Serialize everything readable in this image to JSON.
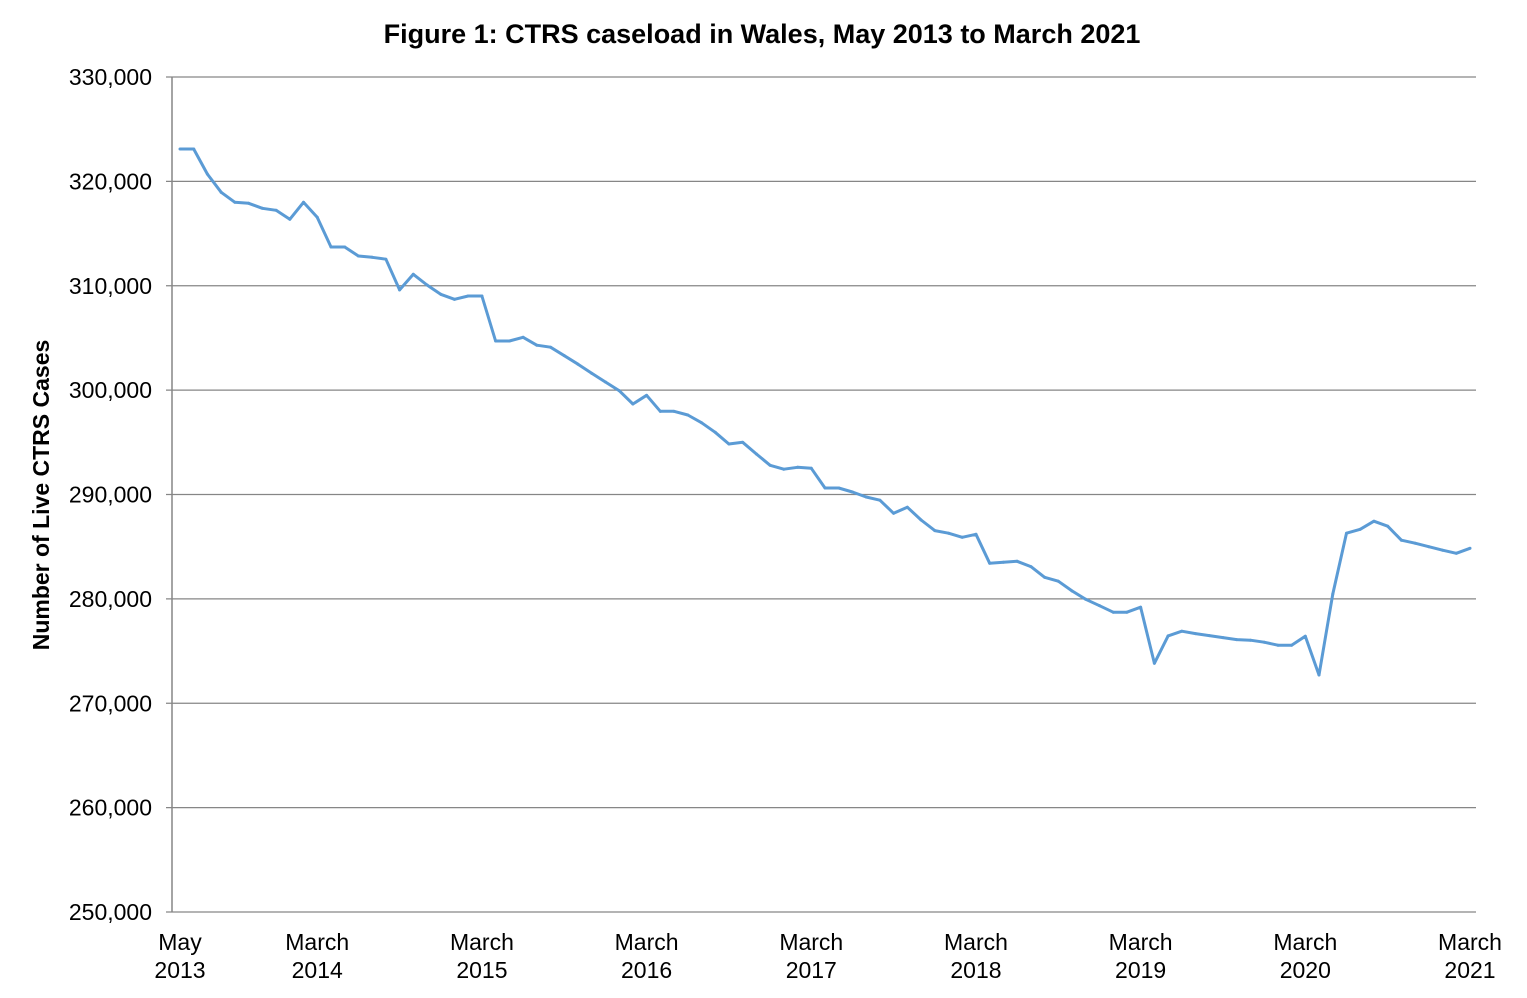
{
  "chart_data": {
    "type": "line",
    "title": "Figure 1: CTRS caseload in Wales, May 2013 to March 2021",
    "xlabel": "",
    "ylabel": "Number of Live CTRS Cases",
    "ylim": [
      250000,
      330000
    ],
    "y_ticks": [
      "250,000",
      "260,000",
      "270,000",
      "280,000",
      "290,000",
      "300,000",
      "310,000",
      "320,000",
      "330,000"
    ],
    "y_tick_values": [
      250000,
      260000,
      270000,
      280000,
      290000,
      300000,
      310000,
      320000,
      330000
    ],
    "x_tick_labels": [
      {
        "index": 0,
        "line1": "May",
        "line2": "2013"
      },
      {
        "index": 10,
        "line1": "March",
        "line2": "2014"
      },
      {
        "index": 22,
        "line1": "March",
        "line2": "2015"
      },
      {
        "index": 34,
        "line1": "March",
        "line2": "2016"
      },
      {
        "index": 46,
        "line1": "March",
        "line2": "2017"
      },
      {
        "index": 58,
        "line1": "March",
        "line2": "2018"
      },
      {
        "index": 70,
        "line1": "March",
        "line2": "2019"
      },
      {
        "index": 82,
        "line1": "March",
        "line2": "2020"
      },
      {
        "index": 94,
        "line1": "March",
        "line2": "2021"
      }
    ],
    "grid": true,
    "legend": "none",
    "series_color": "#5B9BD5",
    "series": [
      {
        "name": "Number of Live CTRS Cases",
        "values": [
          323100,
          323100,
          320700,
          318950,
          318000,
          317900,
          317420,
          317230,
          316370,
          318000,
          316560,
          313710,
          313710,
          312850,
          312730,
          312540,
          309600,
          311100,
          310070,
          309180,
          308700,
          309020,
          309020,
          304710,
          304710,
          305060,
          304300,
          304110,
          303300,
          302480,
          301610,
          300780,
          299950,
          298670,
          299500,
          297970,
          297970,
          297620,
          296880,
          295960,
          294840,
          295000,
          293880,
          292800,
          292420,
          292610,
          292510,
          290620,
          290620,
          290240,
          289760,
          289450,
          288200,
          288780,
          287560,
          286540,
          286290,
          285900,
          286190,
          283410,
          283510,
          283600,
          283090,
          282070,
          281690,
          280760,
          279960,
          279350,
          278720,
          278720,
          279200,
          273830,
          276450,
          276900,
          276670,
          276480,
          276290,
          276100,
          276040,
          275850,
          275560,
          275560,
          276420,
          272710,
          280470,
          286290,
          286670,
          287440,
          286960,
          285620,
          285330,
          285000,
          284660,
          284370,
          284850
        ]
      }
    ]
  }
}
